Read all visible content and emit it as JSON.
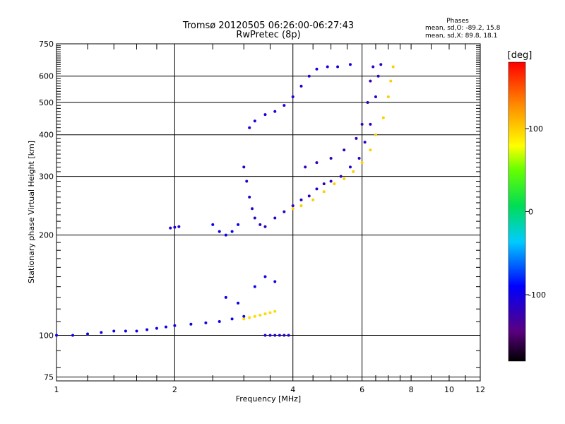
{
  "chart_data": {
    "type": "scatter",
    "title": "Tromsø 20120505 06:26:00-06:27:43",
    "subtitle": "RwPretec (8p)",
    "phases_legend": {
      "heading": "Phases",
      "line1": "mean, sd,O: -89.2, 15.8",
      "line2": "mean, sd,X:  89.8, 18.1"
    },
    "xlabel": "Frequency [MHz]",
    "ylabel": "Stationary phase Virtual Height [km]",
    "x_scale": "log",
    "y_scale": "log",
    "xlim": [
      1,
      12
    ],
    "ylim": [
      73,
      750
    ],
    "xticks": [
      1,
      2,
      4,
      6,
      8,
      10,
      12
    ],
    "yticks": [
      75,
      100,
      200,
      300,
      400,
      500,
      600,
      750
    ],
    "grid": true,
    "colorbar": {
      "label": "[deg]",
      "range": [
        -180,
        180
      ],
      "ticks": [
        100,
        0,
        -100
      ]
    },
    "traces": [
      {
        "phase": -100,
        "points": [
          [
            1.0,
            100
          ],
          [
            1.1,
            100
          ],
          [
            1.2,
            101
          ],
          [
            1.3,
            102
          ],
          [
            1.4,
            103
          ],
          [
            1.5,
            103
          ],
          [
            1.6,
            103
          ],
          [
            1.7,
            104
          ],
          [
            1.8,
            105
          ],
          [
            1.9,
            106
          ],
          [
            2.0,
            107
          ],
          [
            2.2,
            108
          ],
          [
            2.4,
            109
          ],
          [
            2.6,
            110
          ],
          [
            2.8,
            112
          ],
          [
            3.0,
            114
          ]
        ]
      },
      {
        "phase": -110,
        "points": [
          [
            1.95,
            210
          ],
          [
            2.0,
            211
          ],
          [
            2.05,
            212
          ]
        ]
      },
      {
        "phase": -115,
        "points": [
          [
            3.0,
            320
          ],
          [
            3.05,
            290
          ],
          [
            3.1,
            260
          ],
          [
            3.15,
            240
          ],
          [
            3.2,
            225
          ],
          [
            3.3,
            215
          ],
          [
            3.4,
            212
          ],
          [
            3.6,
            225
          ],
          [
            3.8,
            235
          ],
          [
            4.0,
            245
          ],
          [
            4.2,
            255
          ],
          [
            4.4,
            262
          ],
          [
            4.6,
            275
          ],
          [
            4.8,
            285
          ],
          [
            5.0,
            290
          ],
          [
            5.3,
            300
          ],
          [
            5.6,
            320
          ],
          [
            5.9,
            340
          ],
          [
            6.1,
            380
          ],
          [
            6.3,
            430
          ],
          [
            6.5,
            520
          ],
          [
            6.6,
            600
          ],
          [
            6.7,
            650
          ]
        ]
      },
      {
        "phase": -105,
        "points": [
          [
            3.1,
            420
          ],
          [
            3.2,
            440
          ],
          [
            3.4,
            460
          ],
          [
            3.6,
            470
          ],
          [
            3.8,
            490
          ],
          [
            4.0,
            520
          ],
          [
            4.2,
            560
          ],
          [
            4.4,
            600
          ],
          [
            4.6,
            630
          ],
          [
            4.9,
            640
          ],
          [
            5.2,
            640
          ],
          [
            5.6,
            650
          ]
        ]
      },
      {
        "phase": -95,
        "points": [
          [
            2.5,
            215
          ],
          [
            2.6,
            205
          ],
          [
            2.7,
            200
          ],
          [
            2.8,
            205
          ],
          [
            2.9,
            215
          ]
        ]
      },
      {
        "phase": -120,
        "points": [
          [
            4.3,
            320
          ],
          [
            4.6,
            330
          ],
          [
            5.0,
            340
          ],
          [
            5.4,
            360
          ],
          [
            5.8,
            390
          ],
          [
            6.0,
            430
          ],
          [
            6.2,
            500
          ],
          [
            6.3,
            580
          ],
          [
            6.4,
            640
          ]
        ]
      },
      {
        "phase": 100,
        "points": [
          [
            4.0,
            240
          ],
          [
            4.2,
            245
          ],
          [
            4.5,
            255
          ],
          [
            4.8,
            270
          ],
          [
            5.1,
            285
          ],
          [
            5.4,
            295
          ],
          [
            5.7,
            310
          ],
          [
            6.0,
            330
          ],
          [
            6.3,
            360
          ],
          [
            6.5,
            400
          ],
          [
            6.8,
            450
          ],
          [
            7.0,
            520
          ],
          [
            7.1,
            580
          ],
          [
            7.2,
            640
          ]
        ]
      },
      {
        "phase": 95,
        "points": [
          [
            3.0,
            112
          ],
          [
            3.1,
            113
          ],
          [
            3.2,
            114
          ],
          [
            3.3,
            115
          ],
          [
            3.4,
            116
          ],
          [
            3.5,
            117
          ],
          [
            3.6,
            118
          ]
        ]
      },
      {
        "phase": -110,
        "points": [
          [
            3.4,
            100
          ],
          [
            3.5,
            100
          ],
          [
            3.6,
            100
          ],
          [
            3.7,
            100
          ],
          [
            3.8,
            100
          ],
          [
            3.9,
            100
          ]
        ]
      },
      {
        "phase": -100,
        "points": [
          [
            2.7,
            130
          ],
          [
            2.9,
            125
          ],
          [
            3.2,
            140
          ],
          [
            3.4,
            150
          ],
          [
            3.6,
            145
          ]
        ]
      }
    ]
  }
}
